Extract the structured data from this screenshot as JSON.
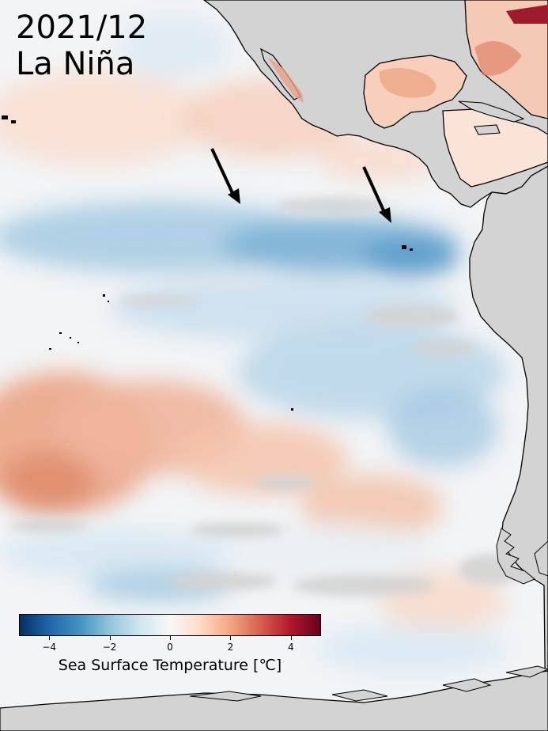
{
  "title": {
    "date": "2021/12",
    "event": "La Niña"
  },
  "colorbar": {
    "label": "Sea Surface Temperature [℃]",
    "min": -5,
    "max": 5,
    "ticks": [
      -4,
      -2,
      0,
      2,
      4
    ],
    "tick_labels": [
      "−4",
      "−2",
      "0",
      "2",
      "4"
    ],
    "colormap": "RdBu_r",
    "colors": [
      "#053061",
      "#2166ac",
      "#4393c3",
      "#92c5de",
      "#d1e5f0",
      "#f7f7f7",
      "#fddbc7",
      "#f4a582",
      "#d6604d",
      "#b2182b",
      "#67001f"
    ]
  },
  "map": {
    "land_color": "#d3d3d3",
    "coastline_color": "#000000",
    "annotations": [
      "arrow",
      "arrow"
    ]
  }
}
